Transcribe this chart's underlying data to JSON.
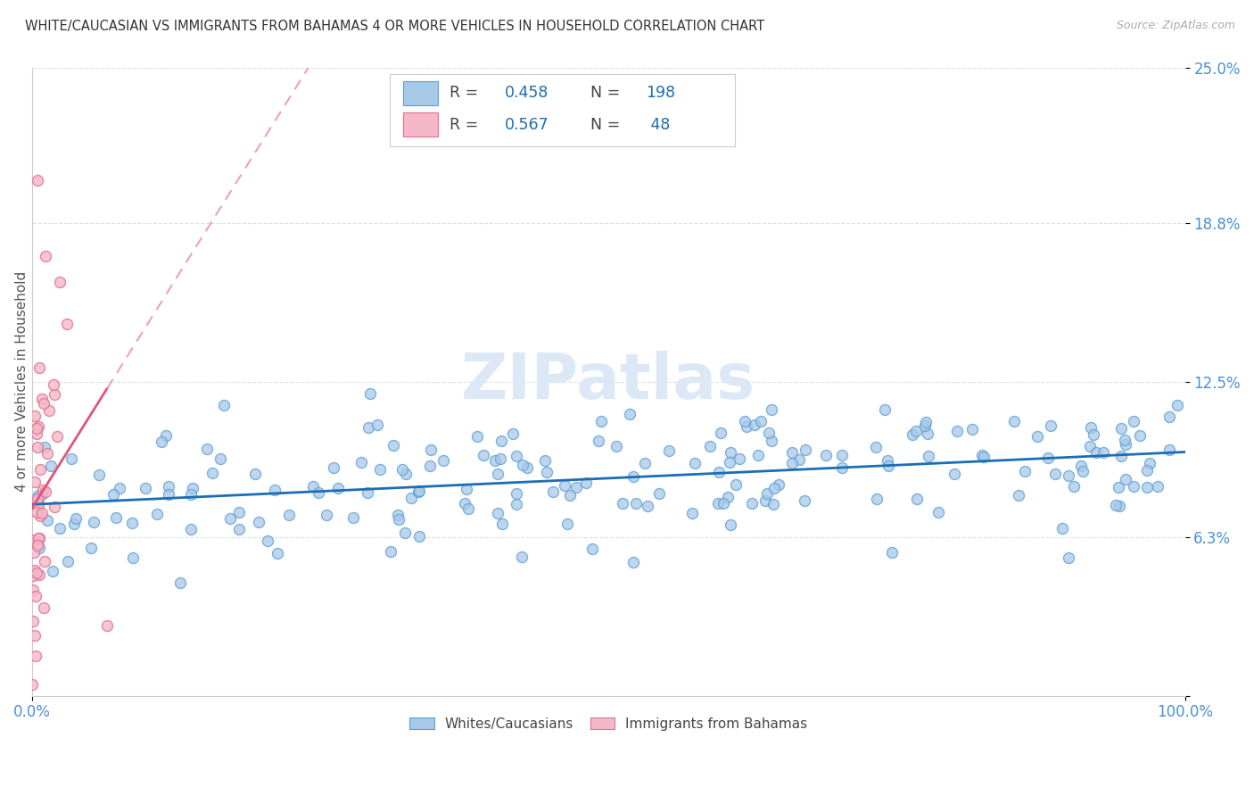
{
  "title": "WHITE/CAUCASIAN VS IMMIGRANTS FROM BAHAMAS 4 OR MORE VEHICLES IN HOUSEHOLD CORRELATION CHART",
  "source": "Source: ZipAtlas.com",
  "ylabel": "4 or more Vehicles in Household",
  "blue_R": 0.458,
  "blue_N": 198,
  "pink_R": 0.567,
  "pink_N": 48,
  "blue_color": "#a8c8e8",
  "blue_edge_color": "#5a9fd4",
  "blue_line_color": "#1a6eb5",
  "pink_color": "#f5b8c8",
  "pink_edge_color": "#e07090",
  "pink_line_color": "#e05575",
  "pink_dash_color": "#f0a0b8",
  "tick_color": "#4a90d9",
  "bg_color": "#ffffff",
  "grid_color": "#d8d8d8",
  "title_color": "#333333",
  "source_color": "#aaaaaa",
  "ylabel_color": "#555555",
  "watermark_color": "#dce8f5",
  "legend_edge_color": "#cccccc",
  "yticks": [
    0.0,
    6.3,
    12.5,
    18.8,
    25.0
  ],
  "ytick_labels": [
    "",
    "6.3%",
    "12.5%",
    "18.8%",
    "25.0%"
  ],
  "xlim": [
    0,
    100
  ],
  "ylim": [
    0,
    25
  ],
  "blue_seed": 12,
  "pink_seed": 7
}
